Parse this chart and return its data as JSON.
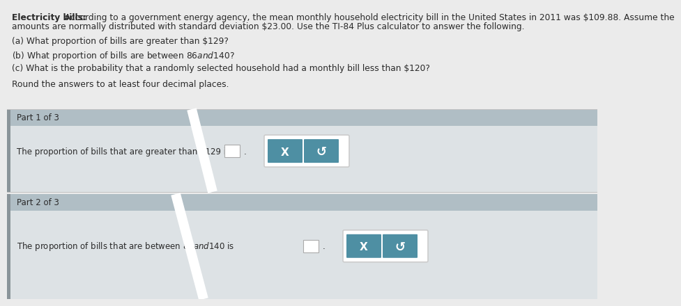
{
  "title_bold": "Electricity bills:",
  "title_rest_line1": " According to a government energy agency, the mean monthly household electricity bill in the United States in 2011 was $109.88. Assume the",
  "title_line2": "amounts are normally distributed with standard deviation $23.00. Use the TI-84 Plus calculator to answer the following.",
  "question_a": "(a) What proportion of bills are greater than $129?",
  "question_b": "(b) What proportion of bills are between $86 and $140?",
  "question_c": "(c) What is the probability that a randomly selected household had a monthly bill less than $120?",
  "round_text": "Round the answers to at least four decimal places.",
  "part1_header": "Part 1 of 3",
  "part1_question": "The proportion of bills that are greater than $129 is",
  "part2_header": "Part 2 of 3",
  "part2_question": "The proportion of bills that are between $86 and $140 is",
  "bg_top": "#ebebeb",
  "bg_section": "#e4e7e9",
  "header_bg": "#b0bec5",
  "content_bg": "#dde2e5",
  "left_strip": "#8a9499",
  "btn_color": "#4e8fa3",
  "btn_x_text": "X",
  "btn_undo_text": "↺",
  "text_dark": "#2a2a2a",
  "text_medium": "#444444",
  "font_size_main": 8.8,
  "font_size_part": 8.5,
  "font_size_btn": 11
}
